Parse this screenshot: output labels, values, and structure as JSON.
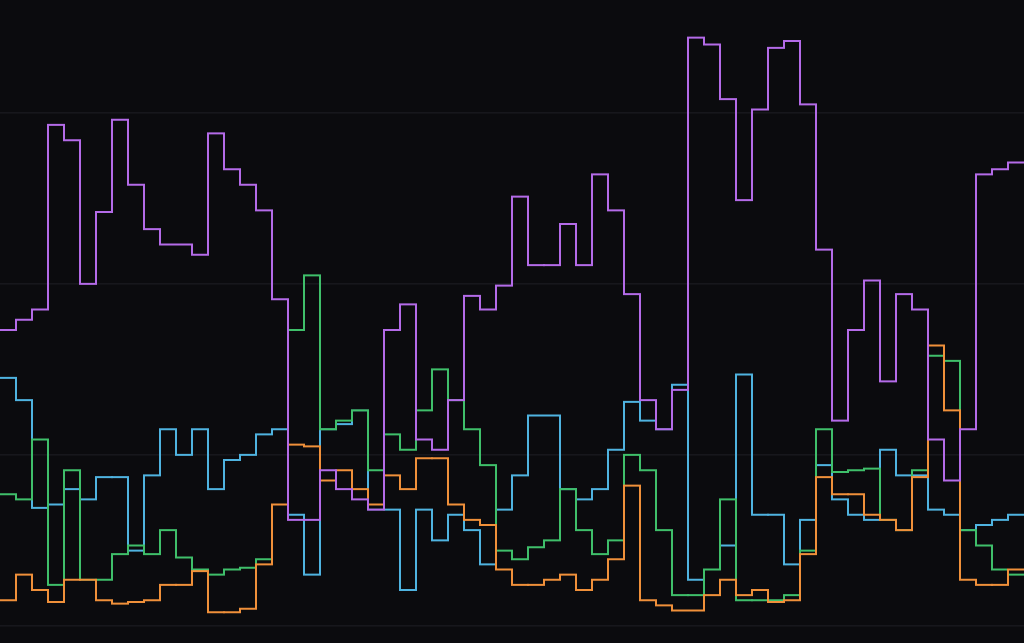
{
  "chart_data": {
    "type": "line",
    "step": true,
    "ylim": [
      -0.1,
      3.66
    ],
    "yticks": [
      0,
      1,
      2,
      3
    ],
    "grid": true,
    "grid_color": "#1f1f24",
    "background": "#0b0b0e",
    "series": [
      {
        "color": "#4fb3e0",
        "values": [
          1.45,
          1.32,
          0.69,
          0.71,
          0.8,
          0.74,
          0.87,
          0.87,
          0.44,
          0.88,
          1.15,
          1.0,
          1.15,
          0.8,
          0.97,
          1.0,
          1.12,
          1.15,
          0.65,
          0.3,
          1.15,
          1.18,
          1.26,
          0.68,
          0.68,
          0.21,
          0.68,
          0.5,
          0.65,
          0.56,
          0.36,
          0.68,
          0.88,
          1.23,
          1.23,
          0.8,
          0.74,
          0.8,
          1.03,
          1.31,
          1.2,
          1.15,
          1.41,
          0.27,
          0.33,
          0.47,
          1.47,
          0.65,
          0.65,
          0.36,
          0.62,
          0.94,
          0.74,
          0.65,
          0.62,
          1.03,
          0.88,
          0.88,
          0.68,
          0.65,
          0.56,
          0.59,
          0.62,
          0.65
        ]
      },
      {
        "color": "#3fbf6a",
        "values": [
          0.77,
          0.74,
          1.09,
          0.24,
          0.91,
          0.27,
          0.27,
          0.42,
          0.47,
          0.42,
          0.56,
          0.4,
          0.33,
          0.3,
          0.33,
          0.34,
          0.39,
          0.71,
          1.73,
          2.05,
          1.15,
          1.2,
          1.26,
          0.91,
          1.12,
          1.03,
          1.26,
          1.5,
          1.32,
          1.15,
          0.94,
          0.44,
          0.39,
          0.46,
          0.5,
          0.8,
          0.56,
          0.42,
          0.5,
          1.0,
          0.91,
          0.56,
          0.18,
          0.18,
          0.33,
          0.74,
          0.15,
          0.15,
          0.15,
          0.18,
          0.44,
          1.15,
          0.9,
          0.91,
          0.92,
          0.62,
          0.56,
          0.91,
          1.58,
          1.55,
          0.56,
          0.47,
          0.33,
          0.3
        ]
      },
      {
        "color": "#f0903a",
        "values": [
          0.15,
          0.3,
          0.21,
          0.14,
          0.27,
          0.27,
          0.15,
          0.13,
          0.14,
          0.15,
          0.24,
          0.24,
          0.32,
          0.08,
          0.08,
          0.1,
          0.36,
          0.71,
          1.06,
          1.05,
          0.85,
          0.91,
          0.8,
          0.71,
          0.88,
          0.8,
          0.98,
          0.98,
          0.71,
          0.62,
          0.59,
          0.33,
          0.24,
          0.24,
          0.27,
          0.3,
          0.21,
          0.27,
          0.39,
          0.82,
          0.15,
          0.12,
          0.09,
          0.09,
          0.18,
          0.27,
          0.18,
          0.21,
          0.14,
          0.15,
          0.42,
          0.87,
          0.77,
          0.77,
          0.65,
          0.62,
          0.56,
          0.87,
          1.64,
          1.26,
          0.27,
          0.24,
          0.24,
          0.33
        ]
      },
      {
        "color": "#b46be8",
        "values": [
          1.73,
          1.79,
          1.85,
          2.93,
          2.84,
          2.0,
          2.42,
          2.96,
          2.58,
          2.32,
          2.23,
          2.23,
          2.17,
          2.88,
          2.67,
          2.58,
          2.43,
          1.91,
          0.62,
          0.62,
          0.91,
          0.8,
          0.74,
          0.68,
          1.73,
          1.88,
          1.09,
          1.03,
          1.32,
          1.93,
          1.85,
          1.99,
          2.51,
          2.11,
          2.11,
          2.35,
          2.11,
          2.64,
          2.43,
          1.94,
          1.32,
          1.15,
          1.38,
          3.44,
          3.4,
          3.08,
          2.49,
          3.02,
          3.38,
          3.42,
          3.05,
          2.2,
          1.2,
          1.73,
          2.02,
          1.43,
          1.94,
          1.85,
          1.09,
          0.85,
          1.15,
          2.64,
          2.67,
          2.71
        ]
      }
    ]
  }
}
